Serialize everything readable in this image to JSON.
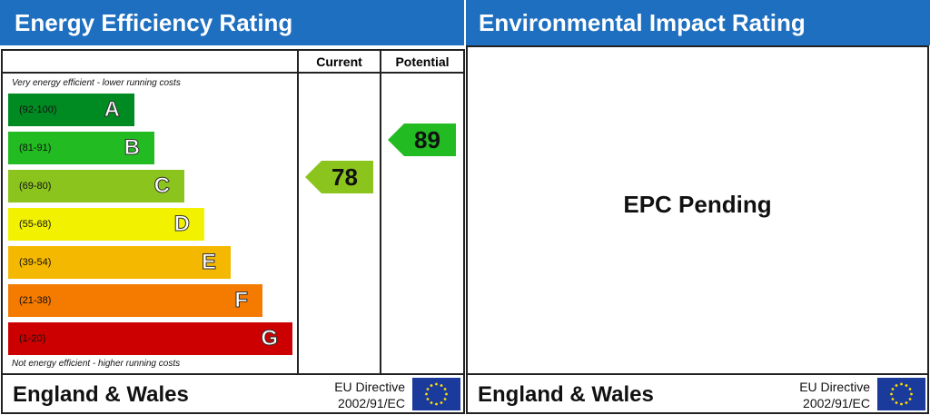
{
  "left": {
    "title": "Energy Efficiency Rating",
    "columns": [
      "Current",
      "Potential"
    ],
    "top_note": "Very energy efficient - lower running costs",
    "bands": [
      {
        "range": "(92-100)",
        "letter": "A"
      },
      {
        "range": "(81-91)",
        "letter": "B"
      },
      {
        "range": "(69-80)",
        "letter": "C"
      },
      {
        "range": "(55-68)",
        "letter": "D"
      },
      {
        "range": "(39-54)",
        "letter": "E"
      },
      {
        "range": "(21-38)",
        "letter": "F"
      },
      {
        "range": "(1-20)",
        "letter": "G"
      }
    ],
    "bottom_note": "Not energy efficient - higher running costs",
    "current": 78,
    "potential": 89,
    "footer": {
      "region": "England & Wales",
      "directive": "EU Directive",
      "number": "2002/91/EC"
    }
  },
  "right": {
    "title": "Environmental Impact Rating",
    "message": "EPC Pending",
    "footer": {
      "region": "England & Wales",
      "directive": "EU Directive",
      "number": "2002/91/EC"
    }
  }
}
